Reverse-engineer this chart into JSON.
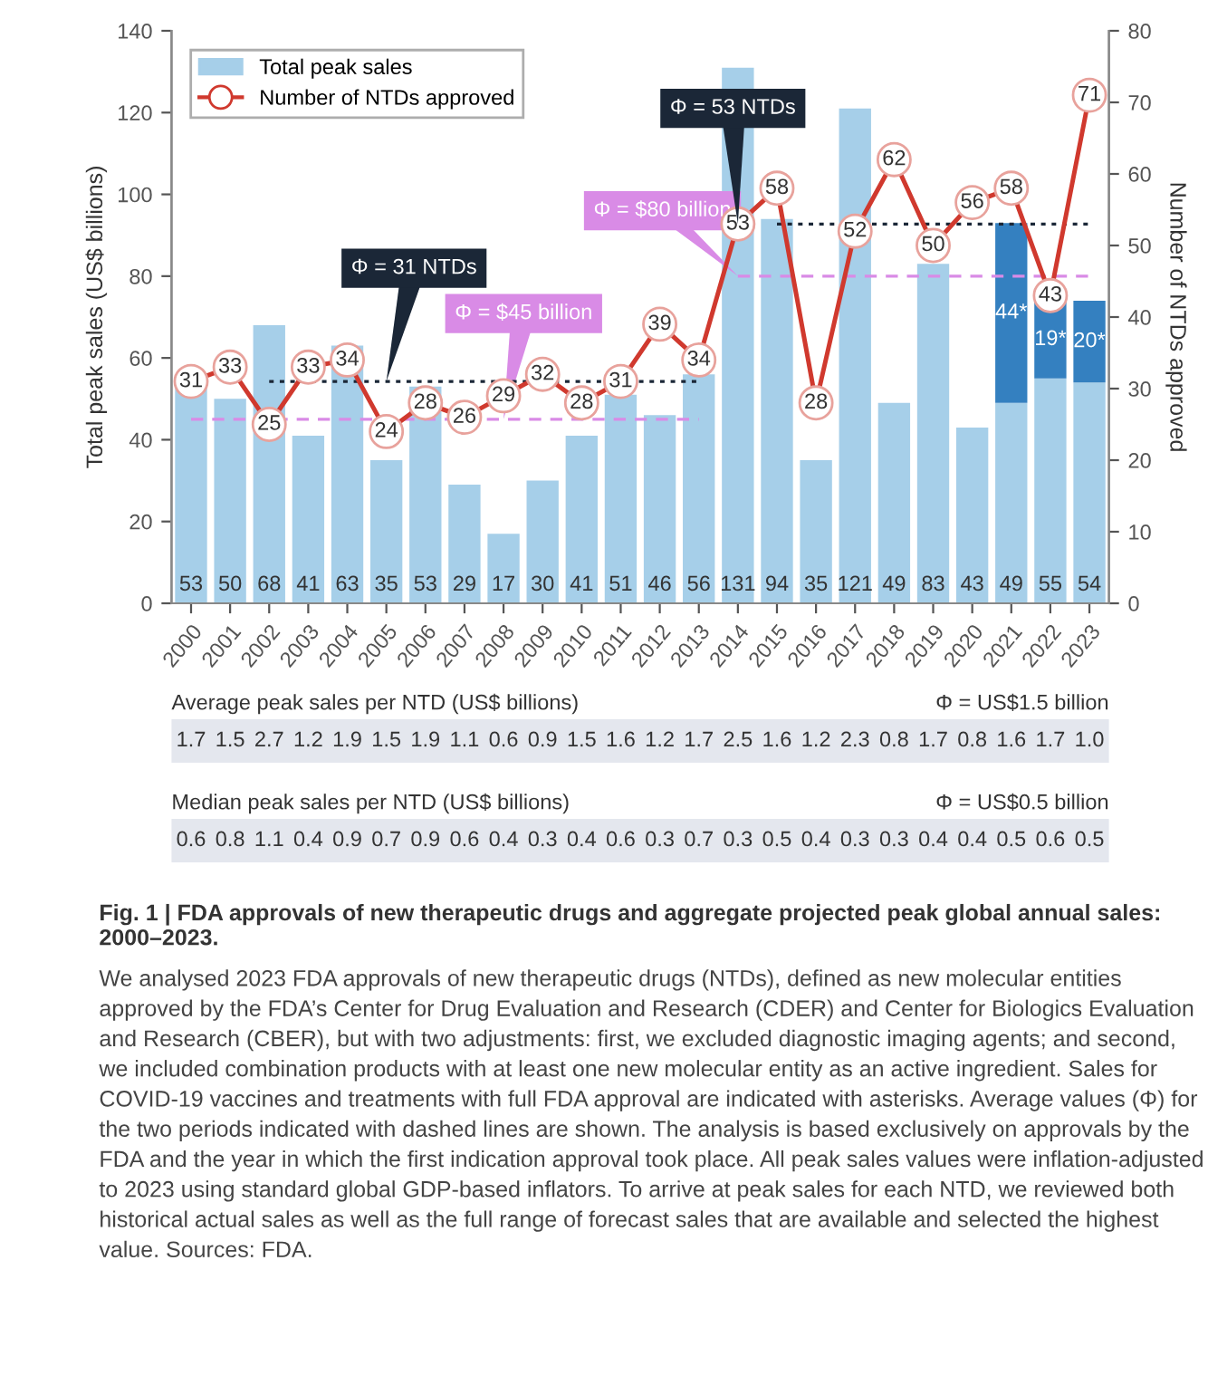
{
  "chart_data": [
    {
      "type": "bar",
      "stacked": true,
      "ylabel": "Total peak sales (US$ billions)",
      "y2label": "Number of NTDs approved",
      "categories": [
        "2000",
        "2001",
        "2002",
        "2003",
        "2004",
        "2005",
        "2006",
        "2007",
        "2008",
        "2009",
        "2010",
        "2011",
        "2012",
        "2013",
        "2014",
        "2015",
        "2016",
        "2017",
        "2018",
        "2019",
        "2020",
        "2021",
        "2022",
        "2023"
      ],
      "ylim": [
        0,
        140
      ],
      "yticks": [
        0,
        20,
        40,
        60,
        80,
        100,
        120,
        140
      ],
      "y2lim": [
        0,
        80
      ],
      "y2ticks": [
        0,
        10,
        20,
        30,
        40,
        50,
        60,
        70,
        80
      ],
      "legend": "top left",
      "grid": false,
      "series": [
        {
          "name": "Total peak sales",
          "color": "#a6cfe9",
          "values": [
            53,
            50,
            68,
            41,
            63,
            35,
            53,
            29,
            17,
            30,
            41,
            51,
            46,
            56,
            131,
            94,
            35,
            121,
            49,
            83,
            43,
            49,
            55,
            54
          ],
          "value_labels": [
            "53",
            "50",
            "68",
            "41",
            "63",
            "35",
            "53",
            "29",
            "17",
            "30",
            "41",
            "51",
            "46",
            "56",
            "131",
            "94",
            "35",
            "121",
            "49",
            "83",
            "43",
            "49",
            "55",
            "54"
          ]
        },
        {
          "color": "#3480c0",
          "values": [
            null,
            null,
            null,
            null,
            null,
            null,
            null,
            null,
            null,
            null,
            null,
            null,
            null,
            null,
            null,
            null,
            null,
            null,
            null,
            null,
            null,
            44,
            19,
            20
          ],
          "value_labels": [
            null,
            null,
            null,
            null,
            null,
            null,
            null,
            null,
            null,
            null,
            null,
            null,
            null,
            null,
            null,
            null,
            null,
            null,
            null,
            null,
            null,
            "44*",
            "19*",
            "20*"
          ]
        },
        {
          "type": "line",
          "name": "Φ = 31 NTDs",
          "axis": "y2",
          "color": "#1b2737",
          "line_style": "dotted",
          "marker": "none",
          "values": [
            null,
            null,
            31,
            null,
            31,
            31,
            31,
            31,
            31,
            null,
            31,
            null,
            31,
            31,
            null,
            null,
            null,
            null,
            null,
            null,
            null,
            null,
            null,
            null
          ]
        },
        {
          "type": "line",
          "name": "Φ = $45 billion",
          "color": "#d98be6",
          "line_style": "dashed",
          "marker": "none",
          "values": [
            45,
            45,
            null,
            45,
            45,
            null,
            null,
            null,
            45,
            45,
            null,
            45,
            45,
            45,
            null,
            null,
            null,
            null,
            null,
            null,
            null,
            null,
            null,
            null
          ]
        },
        {
          "type": "line",
          "name": "Φ = 53 NTDs",
          "axis": "y2",
          "color": "#1b2737",
          "line_style": "dotted",
          "marker": "none",
          "values": [
            null,
            null,
            null,
            null,
            null,
            null,
            null,
            null,
            null,
            null,
            null,
            null,
            null,
            null,
            null,
            53,
            53,
            null,
            53,
            53,
            53,
            53,
            53,
            53
          ]
        },
        {
          "type": "line",
          "name": "Φ = $80 billion",
          "color": "#d98be6",
          "line_style": "dashed",
          "marker": "none",
          "values": [
            null,
            null,
            null,
            null,
            null,
            null,
            null,
            null,
            null,
            null,
            null,
            null,
            null,
            null,
            80,
            80,
            80,
            80,
            80,
            80,
            80,
            80,
            80,
            80
          ]
        },
        {
          "type": "line",
          "name": "Number of NTDs approved",
          "axis": "y2",
          "color": "#d0392e",
          "line_style": "solid",
          "marker": "circle",
          "values": [
            31,
            33,
            25,
            33,
            34,
            24,
            28,
            26,
            29,
            32,
            28,
            31,
            39,
            34,
            53,
            58,
            28,
            52,
            62,
            50,
            56,
            58,
            43,
            71
          ],
          "value_labels": [
            "31",
            "33",
            "25",
            "33",
            "34",
            "24",
            "28",
            "26",
            "29",
            "32",
            "28",
            "31",
            "39",
            "34",
            "53",
            "58",
            "28",
            "52",
            "62",
            "50",
            "56",
            "58",
            "43",
            "71"
          ]
        }
      ],
      "annotations": [
        "Fig. 1 | FDA approvals of new therapeutic drugs and aggregate projected peak global annual sales: 2000–2023.",
        "We analysed 2023 FDA approvals of new therapeutic drugs (NTDs), defined as new molecular entities approved by the FDA’s Center for Drug Evaluation and Research (CDER) and Center for Biologics Evaluation and Research (CBER), but with two adjustments: first, we excluded diagnostic imaging agents; and second, we included combination products with at least one new molecular entity as an active ingredient. Sales for COVID-19 vaccines and treatments with full FDA approval are indicated with asterisks. Average values (Φ) for the two periods indicated with dashed lines are shown. The analysis is based exclusively on approvals by the FDA and the year in which the first indication approval took place. All peak sales values were inflation-adjusted to 2023 using standard global GDP-based inflators. To arrive at peak sales for each NTD, we reviewed both historical actual sales as well as the full range of forecast sales that are available and selected the highest value. Sources: FDA."
      ]
    },
    {
      "type": "other",
      "title": "Average peak sales per NTD (US$ billions)",
      "subtitle": "Φ = US$1.5 billion",
      "categories": [
        null,
        null,
        null,
        null,
        null,
        null,
        null,
        null,
        null,
        null,
        null,
        null,
        null,
        null,
        null,
        null,
        null,
        null,
        null,
        null,
        null,
        null,
        null,
        null
      ],
      "value_labels": [
        "1.7",
        "1.5",
        "2.7",
        "1.2",
        "1.9",
        "1.5",
        "1.9",
        "1.1",
        "0.6",
        "0.9",
        "1.5",
        "1.6",
        "1.2",
        "1.7",
        "2.5",
        "1.6",
        "1.2",
        "2.3",
        "0.8",
        "1.7",
        "0.8",
        "1.6",
        "1.7",
        "1.0"
      ]
    },
    {
      "type": "other",
      "title": "Median peak sales per NTD (US$ billions)",
      "subtitle": "Φ = US$0.5 billion",
      "categories": [
        null,
        null,
        null,
        null,
        null,
        null,
        null,
        null,
        null,
        null,
        null,
        null,
        null,
        null,
        null,
        null,
        null,
        null,
        null,
        null,
        null,
        null,
        null,
        null
      ],
      "value_labels": [
        "0.6",
        "0.8",
        "1.1",
        "0.4",
        "0.9",
        "0.7",
        "0.9",
        "0.6",
        "0.4",
        "0.3",
        "0.4",
        "0.6",
        "0.3",
        "0.7",
        "0.3",
        "0.5",
        "0.4",
        "0.3",
        "0.3",
        "0.4",
        "0.4",
        "0.5",
        "0.6",
        "0.5"
      ]
    }
  ]
}
